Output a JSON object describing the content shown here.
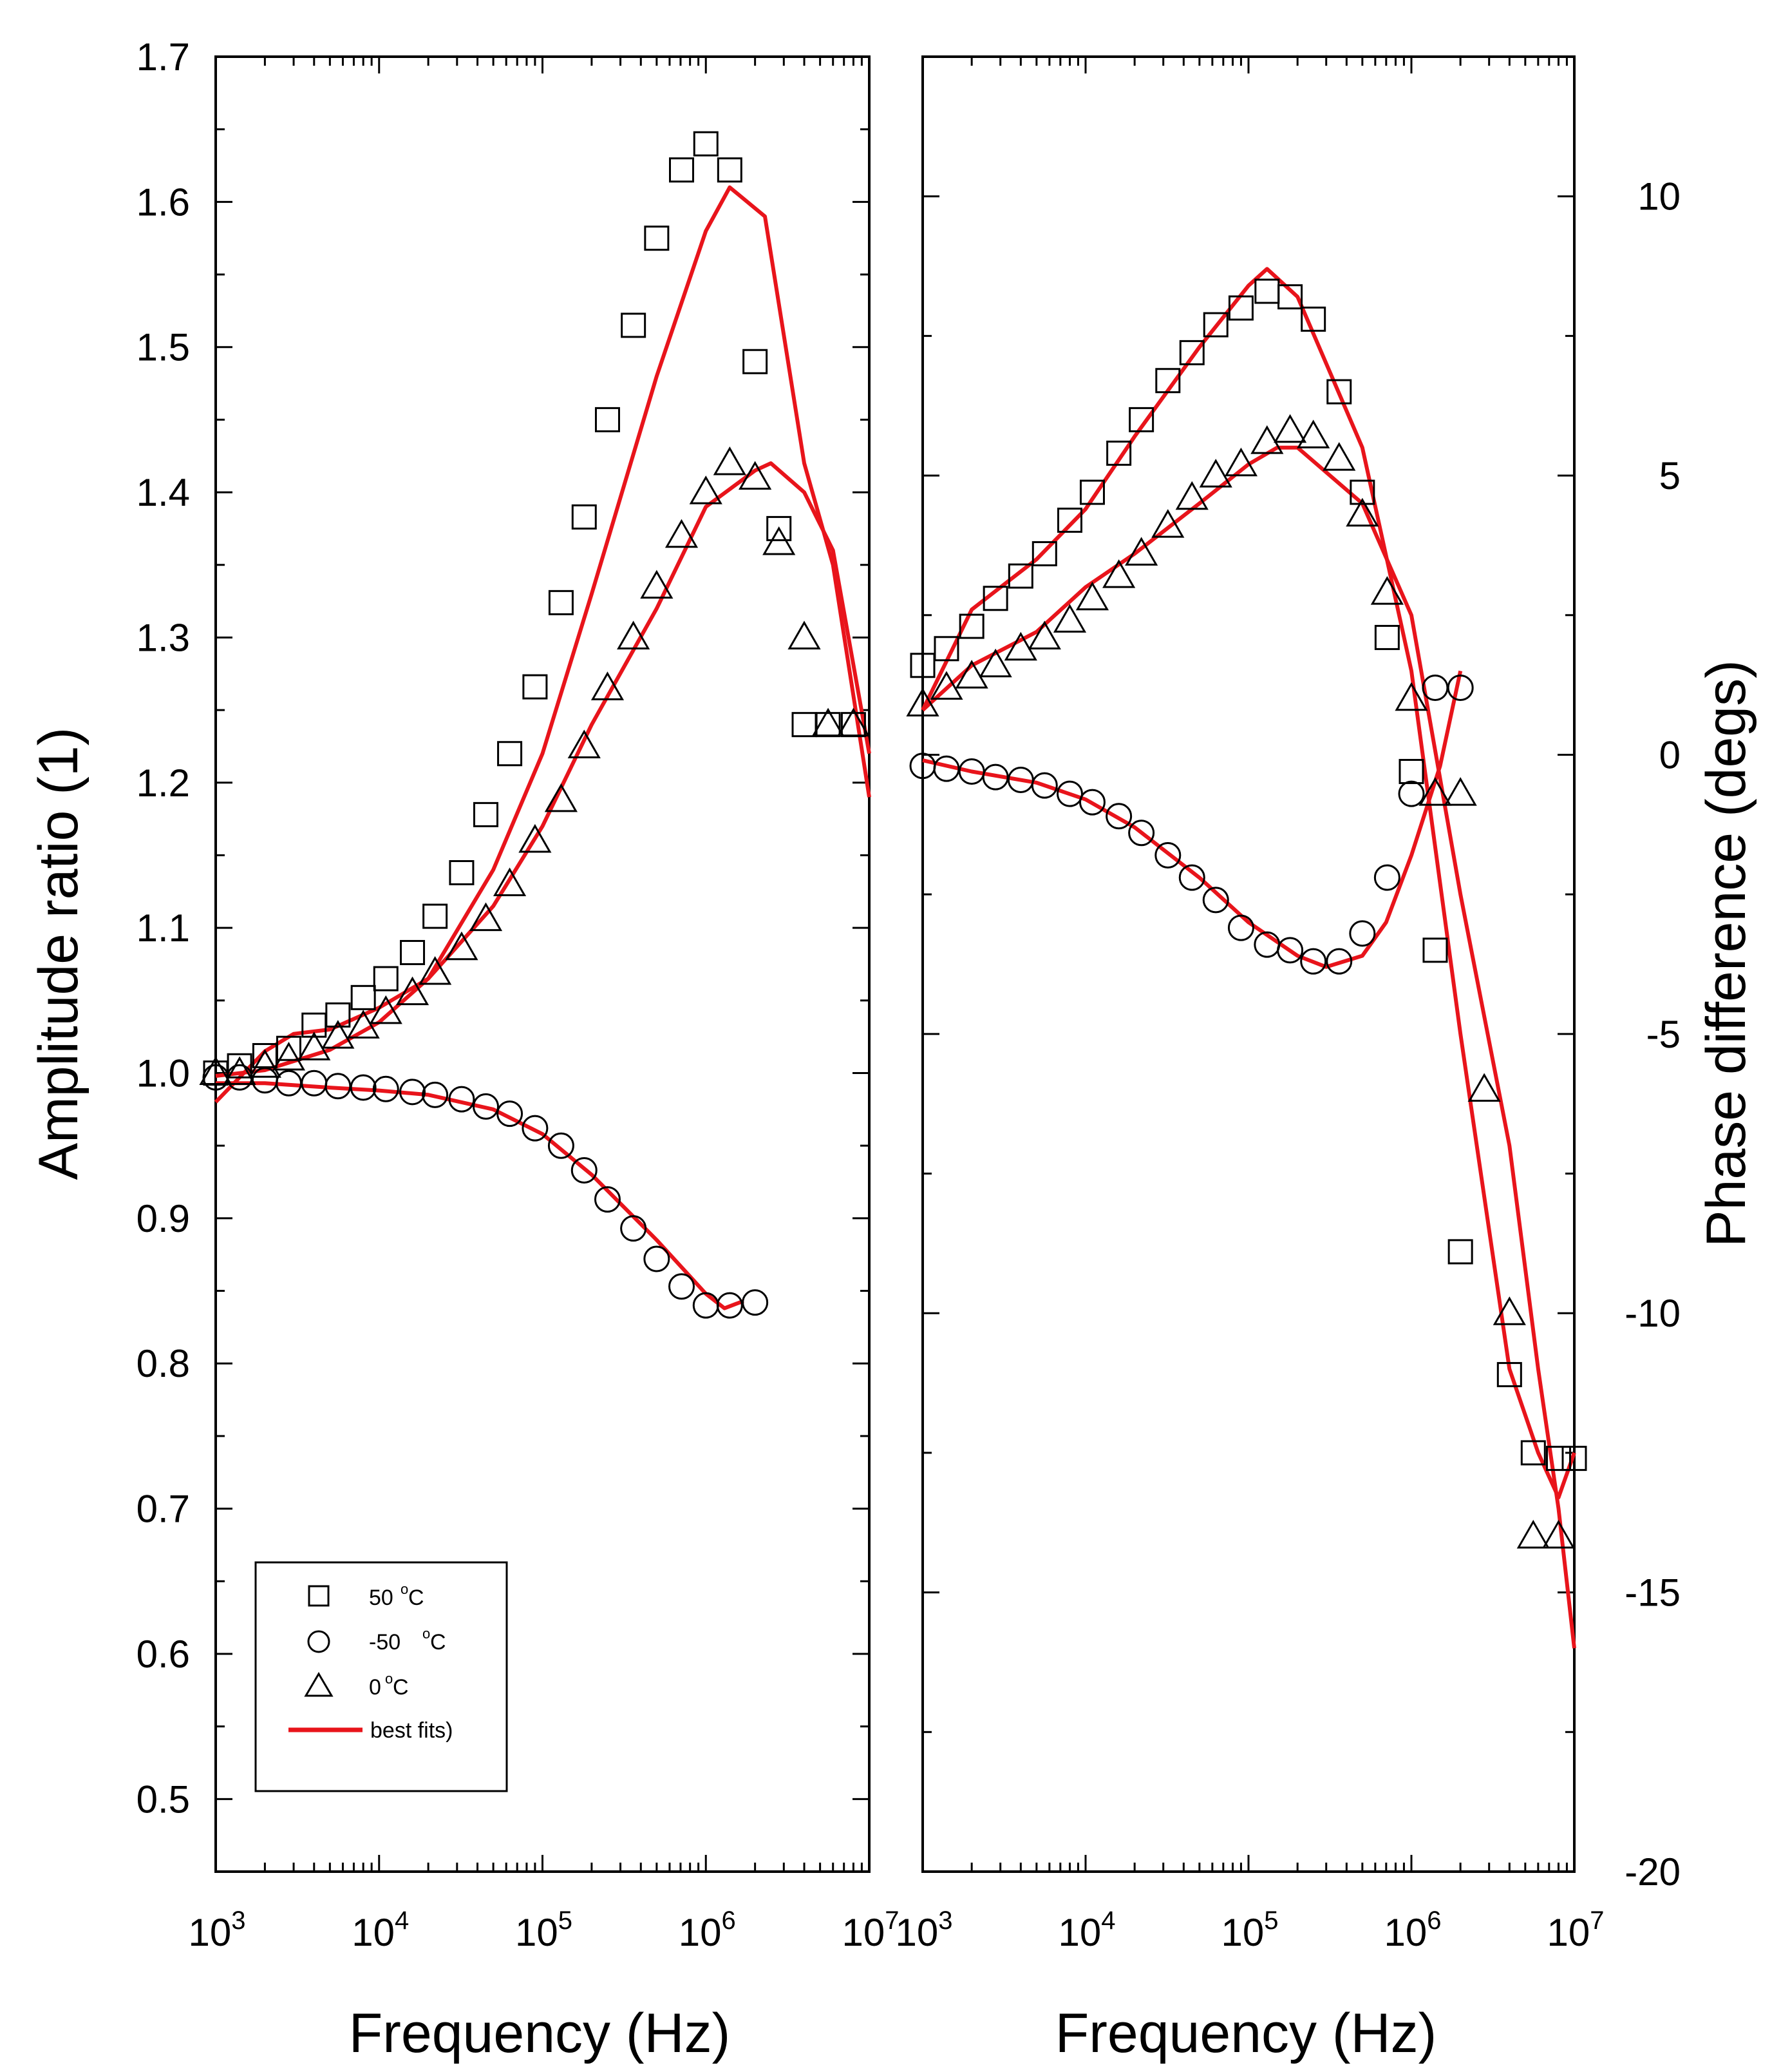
{
  "chart_data": [
    {
      "type": "scatter",
      "panel": "left",
      "xlabel": "Frequency (Hz)",
      "ylabel": "Amplitude ratio (1)",
      "xscale": "log",
      "xlim": [
        1000,
        10000000
      ],
      "ylim": [
        0.45,
        1.7
      ],
      "x_tick_labels": [
        {
          "base": "10",
          "exp": "3"
        },
        {
          "base": "10",
          "exp": "4"
        },
        {
          "base": "10",
          "exp": "5"
        },
        {
          "base": "10",
          "exp": "6"
        },
        {
          "base": "10",
          "exp": "7"
        }
      ],
      "y_tick_labels": [
        "0.5",
        "0.6",
        "0.7",
        "0.8",
        "0.9",
        "1.0",
        "1.1",
        "1.2",
        "1.3",
        "1.4",
        "1.5",
        "1.6",
        "1.7"
      ],
      "legend": {
        "position": "bottom-left",
        "entries": [
          {
            "marker": "square",
            "label": "50",
            "unit": "C",
            "degree": "o"
          },
          {
            "marker": "circle",
            "label": "-50",
            "unit": "C",
            "degree": "o"
          },
          {
            "marker": "triangle",
            "label": "0",
            "unit": "C",
            "degree": "o"
          },
          {
            "marker": "line",
            "label": "best fits)"
          }
        ]
      },
      "series": [
        {
          "name": "50 °C",
          "marker": "square",
          "x": [
            1000,
            1400,
            2000,
            2800,
            4000,
            5600,
            8000,
            11000,
            16000,
            22000,
            32000,
            45000,
            63000,
            90000,
            130000,
            180000,
            250000,
            360000,
            500000,
            710000,
            1000000,
            1400000,
            2000000,
            2800000,
            4000000,
            5600000,
            8000000
          ],
          "y": [
            1.0,
            1.005,
            1.012,
            1.017,
            1.033,
            1.04,
            1.052,
            1.065,
            1.083,
            1.108,
            1.138,
            1.178,
            1.22,
            1.266,
            1.324,
            1.383,
            1.45,
            1.515,
            1.575,
            1.622,
            1.64,
            1.622,
            1.49,
            1.375,
            1.24,
            1.24,
            1.24
          ]
        },
        {
          "name": "-50 °C",
          "marker": "circle",
          "x": [
            1000,
            1400,
            2000,
            2800,
            4000,
            5600,
            8000,
            11000,
            16000,
            22000,
            32000,
            45000,
            63000,
            90000,
            130000,
            180000,
            250000,
            360000,
            500000,
            710000,
            1000000,
            1400000,
            2000000
          ],
          "y": [
            0.997,
            0.997,
            0.995,
            0.993,
            0.993,
            0.991,
            0.99,
            0.989,
            0.987,
            0.985,
            0.982,
            0.977,
            0.972,
            0.962,
            0.95,
            0.933,
            0.913,
            0.893,
            0.872,
            0.853,
            0.84,
            0.84,
            0.842
          ]
        },
        {
          "name": "0 °C",
          "marker": "triangle",
          "x": [
            1000,
            1400,
            2000,
            2800,
            4000,
            5600,
            8000,
            11000,
            16000,
            22000,
            32000,
            45000,
            63000,
            90000,
            130000,
            180000,
            250000,
            360000,
            500000,
            710000,
            1000000,
            1400000,
            2000000,
            2800000,
            4000000,
            5600000,
            8000000
          ],
          "y": [
            1.0,
            1.0,
            1.005,
            1.01,
            1.017,
            1.025,
            1.032,
            1.042,
            1.055,
            1.069,
            1.086,
            1.106,
            1.13,
            1.16,
            1.188,
            1.225,
            1.265,
            1.3,
            1.335,
            1.37,
            1.4,
            1.42,
            1.41,
            1.365,
            1.3,
            1.24,
            1.24
          ]
        }
      ],
      "fits": [
        {
          "name": "fit 50 °C",
          "x": [
            1000,
            2000,
            5000,
            10000,
            20000,
            50000,
            100000,
            200000,
            500000,
            1000000,
            1400000,
            2300000,
            4000000,
            6000000,
            10000000
          ],
          "y": [
            0.998,
            1.002,
            1.016,
            1.035,
            1.065,
            1.14,
            1.22,
            1.33,
            1.48,
            1.58,
            1.61,
            1.59,
            1.42,
            1.35,
            1.19
          ]
        },
        {
          "name": "fit -50 °C",
          "x": [
            1000,
            2000,
            5000,
            10000,
            20000,
            50000,
            100000,
            200000,
            500000,
            1000000,
            1300000,
            1700000
          ],
          "y": [
            0.993,
            0.993,
            0.99,
            0.988,
            0.985,
            0.975,
            0.958,
            0.93,
            0.885,
            0.848,
            0.838,
            0.843
          ]
        },
        {
          "name": "fit 0 °C",
          "x": [
            1000,
            2000,
            3000,
            5000,
            10000,
            20000,
            50000,
            100000,
            200000,
            500000,
            1000000,
            2000000,
            2500000,
            4000000,
            6000000,
            10000000
          ],
          "y": [
            0.98,
            1.015,
            1.027,
            1.03,
            1.045,
            1.065,
            1.115,
            1.17,
            1.24,
            1.32,
            1.39,
            1.415,
            1.42,
            1.4,
            1.36,
            1.22
          ]
        }
      ]
    },
    {
      "type": "scatter",
      "panel": "right",
      "xlabel": "Frequency (Hz)",
      "ylabel": "Phase difference (degs)",
      "xscale": "log",
      "xlim": [
        1000,
        10000000
      ],
      "ylim": [
        -20,
        12.5
      ],
      "x_tick_labels": [
        {
          "base": "10",
          "exp": "3"
        },
        {
          "base": "10",
          "exp": "4"
        },
        {
          "base": "10",
          "exp": "5"
        },
        {
          "base": "10",
          "exp": "6"
        },
        {
          "base": "10",
          "exp": "7"
        }
      ],
      "y_tick_labels": [
        "-20",
        "-15",
        "-10",
        "-5",
        "0",
        "5",
        "10"
      ],
      "series": [
        {
          "name": "50 °C",
          "marker": "square",
          "x": [
            1000,
            1400,
            2000,
            2800,
            4000,
            5600,
            8000,
            11000,
            16000,
            22000,
            32000,
            45000,
            63000,
            90000,
            130000,
            180000,
            250000,
            360000,
            500000,
            710000,
            1000000,
            1400000,
            2000000,
            4000000,
            5600000,
            8000000,
            10000000
          ],
          "y": [
            1.6,
            1.9,
            2.3,
            2.8,
            3.2,
            3.6,
            4.2,
            4.7,
            5.4,
            6.0,
            6.7,
            7.2,
            7.7,
            8.0,
            8.3,
            8.2,
            7.8,
            6.5,
            4.7,
            2.1,
            -0.3,
            -3.5,
            -8.9,
            -11.1,
            -12.5,
            -12.6,
            -12.6
          ]
        },
        {
          "name": "-50 °C",
          "marker": "circle",
          "x": [
            1000,
            1400,
            2000,
            2800,
            4000,
            5600,
            8000,
            11000,
            16000,
            22000,
            32000,
            45000,
            63000,
            90000,
            130000,
            180000,
            250000,
            360000,
            500000,
            710000,
            1000000,
            1400000,
            2000000
          ],
          "y": [
            -0.2,
            -0.25,
            -0.3,
            -0.4,
            -0.45,
            -0.55,
            -0.7,
            -0.85,
            -1.1,
            -1.4,
            -1.8,
            -2.2,
            -2.6,
            -3.1,
            -3.4,
            -3.5,
            -3.7,
            -3.7,
            -3.2,
            -2.2,
            -0.7,
            1.2,
            1.2
          ]
        },
        {
          "name": "0 °C",
          "marker": "triangle",
          "x": [
            1000,
            1400,
            2000,
            2800,
            4000,
            5600,
            8000,
            11000,
            16000,
            22000,
            32000,
            45000,
            63000,
            90000,
            130000,
            180000,
            250000,
            360000,
            500000,
            710000,
            1000000,
            1400000,
            2000000,
            2800000,
            4000000,
            5600000,
            8000000
          ],
          "y": [
            0.9,
            1.2,
            1.4,
            1.6,
            1.9,
            2.1,
            2.4,
            2.8,
            3.2,
            3.6,
            4.1,
            4.6,
            5.0,
            5.2,
            5.6,
            5.8,
            5.7,
            5.3,
            4.3,
            2.9,
            1.0,
            -0.7,
            -0.7,
            -6.0,
            -10.0,
            -14.0,
            -14.0
          ]
        }
      ],
      "fits": [
        {
          "name": "fit 50 °C",
          "x": [
            1000,
            2000,
            5000,
            10000,
            20000,
            50000,
            100000,
            130000,
            200000,
            500000,
            1000000,
            2000000,
            4000000,
            6000000,
            8000000,
            10000000
          ],
          "y": [
            0.8,
            2.6,
            3.5,
            4.4,
            5.7,
            7.3,
            8.4,
            8.7,
            8.2,
            5.5,
            1.5,
            -5.0,
            -11.0,
            -12.5,
            -13.3,
            -12.5
          ]
        },
        {
          "name": "fit -50 °C",
          "x": [
            1000,
            2000,
            5000,
            10000,
            20000,
            50000,
            100000,
            200000,
            300000,
            500000,
            700000,
            1000000,
            1500000,
            2000000
          ],
          "y": [
            -0.1,
            -0.3,
            -0.5,
            -0.8,
            -1.3,
            -2.2,
            -3.0,
            -3.6,
            -3.8,
            -3.6,
            -3.0,
            -1.8,
            -0.2,
            1.5
          ]
        },
        {
          "name": "fit 0 °C",
          "x": [
            1000,
            2000,
            5000,
            10000,
            20000,
            50000,
            100000,
            150000,
            200000,
            500000,
            1000000,
            2000000,
            4000000,
            6000000,
            8000000,
            10000000
          ],
          "y": [
            0.8,
            1.6,
            2.2,
            3.0,
            3.6,
            4.5,
            5.2,
            5.5,
            5.5,
            4.5,
            2.5,
            -2.5,
            -7.0,
            -11.0,
            -13.5,
            -16.0
          ]
        }
      ]
    }
  ]
}
